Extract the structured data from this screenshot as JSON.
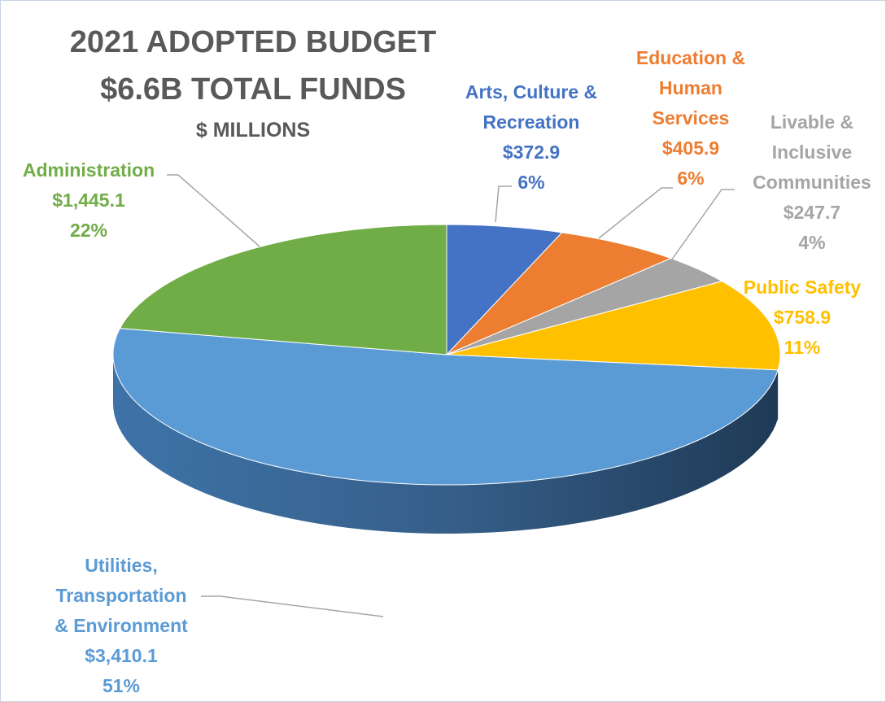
{
  "title": "2021 ADOPTED BUDGET",
  "subtitle": "$6.6B TOTAL FUNDS",
  "unit_label": "$ MILLIONS",
  "chart_data": {
    "type": "pie",
    "title": "2021 ADOPTED BUDGET",
    "subtitle": "$6.6B TOTAL FUNDS",
    "unit": "$ MILLIONS",
    "total_label": "$6.6B",
    "is_3d": true,
    "slices": [
      {
        "name": "Arts, Culture & Recreation",
        "name_lines": [
          "Arts, Culture &",
          "Recreation"
        ],
        "value": 372.9,
        "value_label": "$372.9",
        "percent": "6%",
        "color": "#4472c4"
      },
      {
        "name": "Education & Human Services",
        "name_lines": [
          "Education &",
          "Human",
          "Services"
        ],
        "value": 405.9,
        "value_label": "$405.9",
        "percent": "6%",
        "color": "#ed7d31"
      },
      {
        "name": "Livable & Inclusive Communities",
        "name_lines": [
          "Livable &",
          "Inclusive",
          "Communities"
        ],
        "value": 247.7,
        "value_label": "$247.7",
        "percent": "4%",
        "color": "#a5a5a5"
      },
      {
        "name": "Public Safety",
        "name_lines": [
          "Public Safety"
        ],
        "value": 758.9,
        "value_label": "$758.9",
        "percent": "11%",
        "color": "#ffc000"
      },
      {
        "name": "Utilities, Transportation & Environment",
        "name_lines": [
          "Utilities,",
          "Transportation",
          "& Environment"
        ],
        "value": 3410.1,
        "value_label": "$3,410.1",
        "percent": "51%",
        "color": "#5b9bd5"
      },
      {
        "name": "Administration",
        "name_lines": [
          "Administration"
        ],
        "value": 1445.1,
        "value_label": "$1,445.1",
        "percent": "22%",
        "color": "#70ad47"
      }
    ],
    "label_colors": [
      "#4472c4",
      "#ed7d31",
      "#a5a5a5",
      "#ffc000",
      "#5b9bd5",
      "#70ad47"
    ]
  }
}
